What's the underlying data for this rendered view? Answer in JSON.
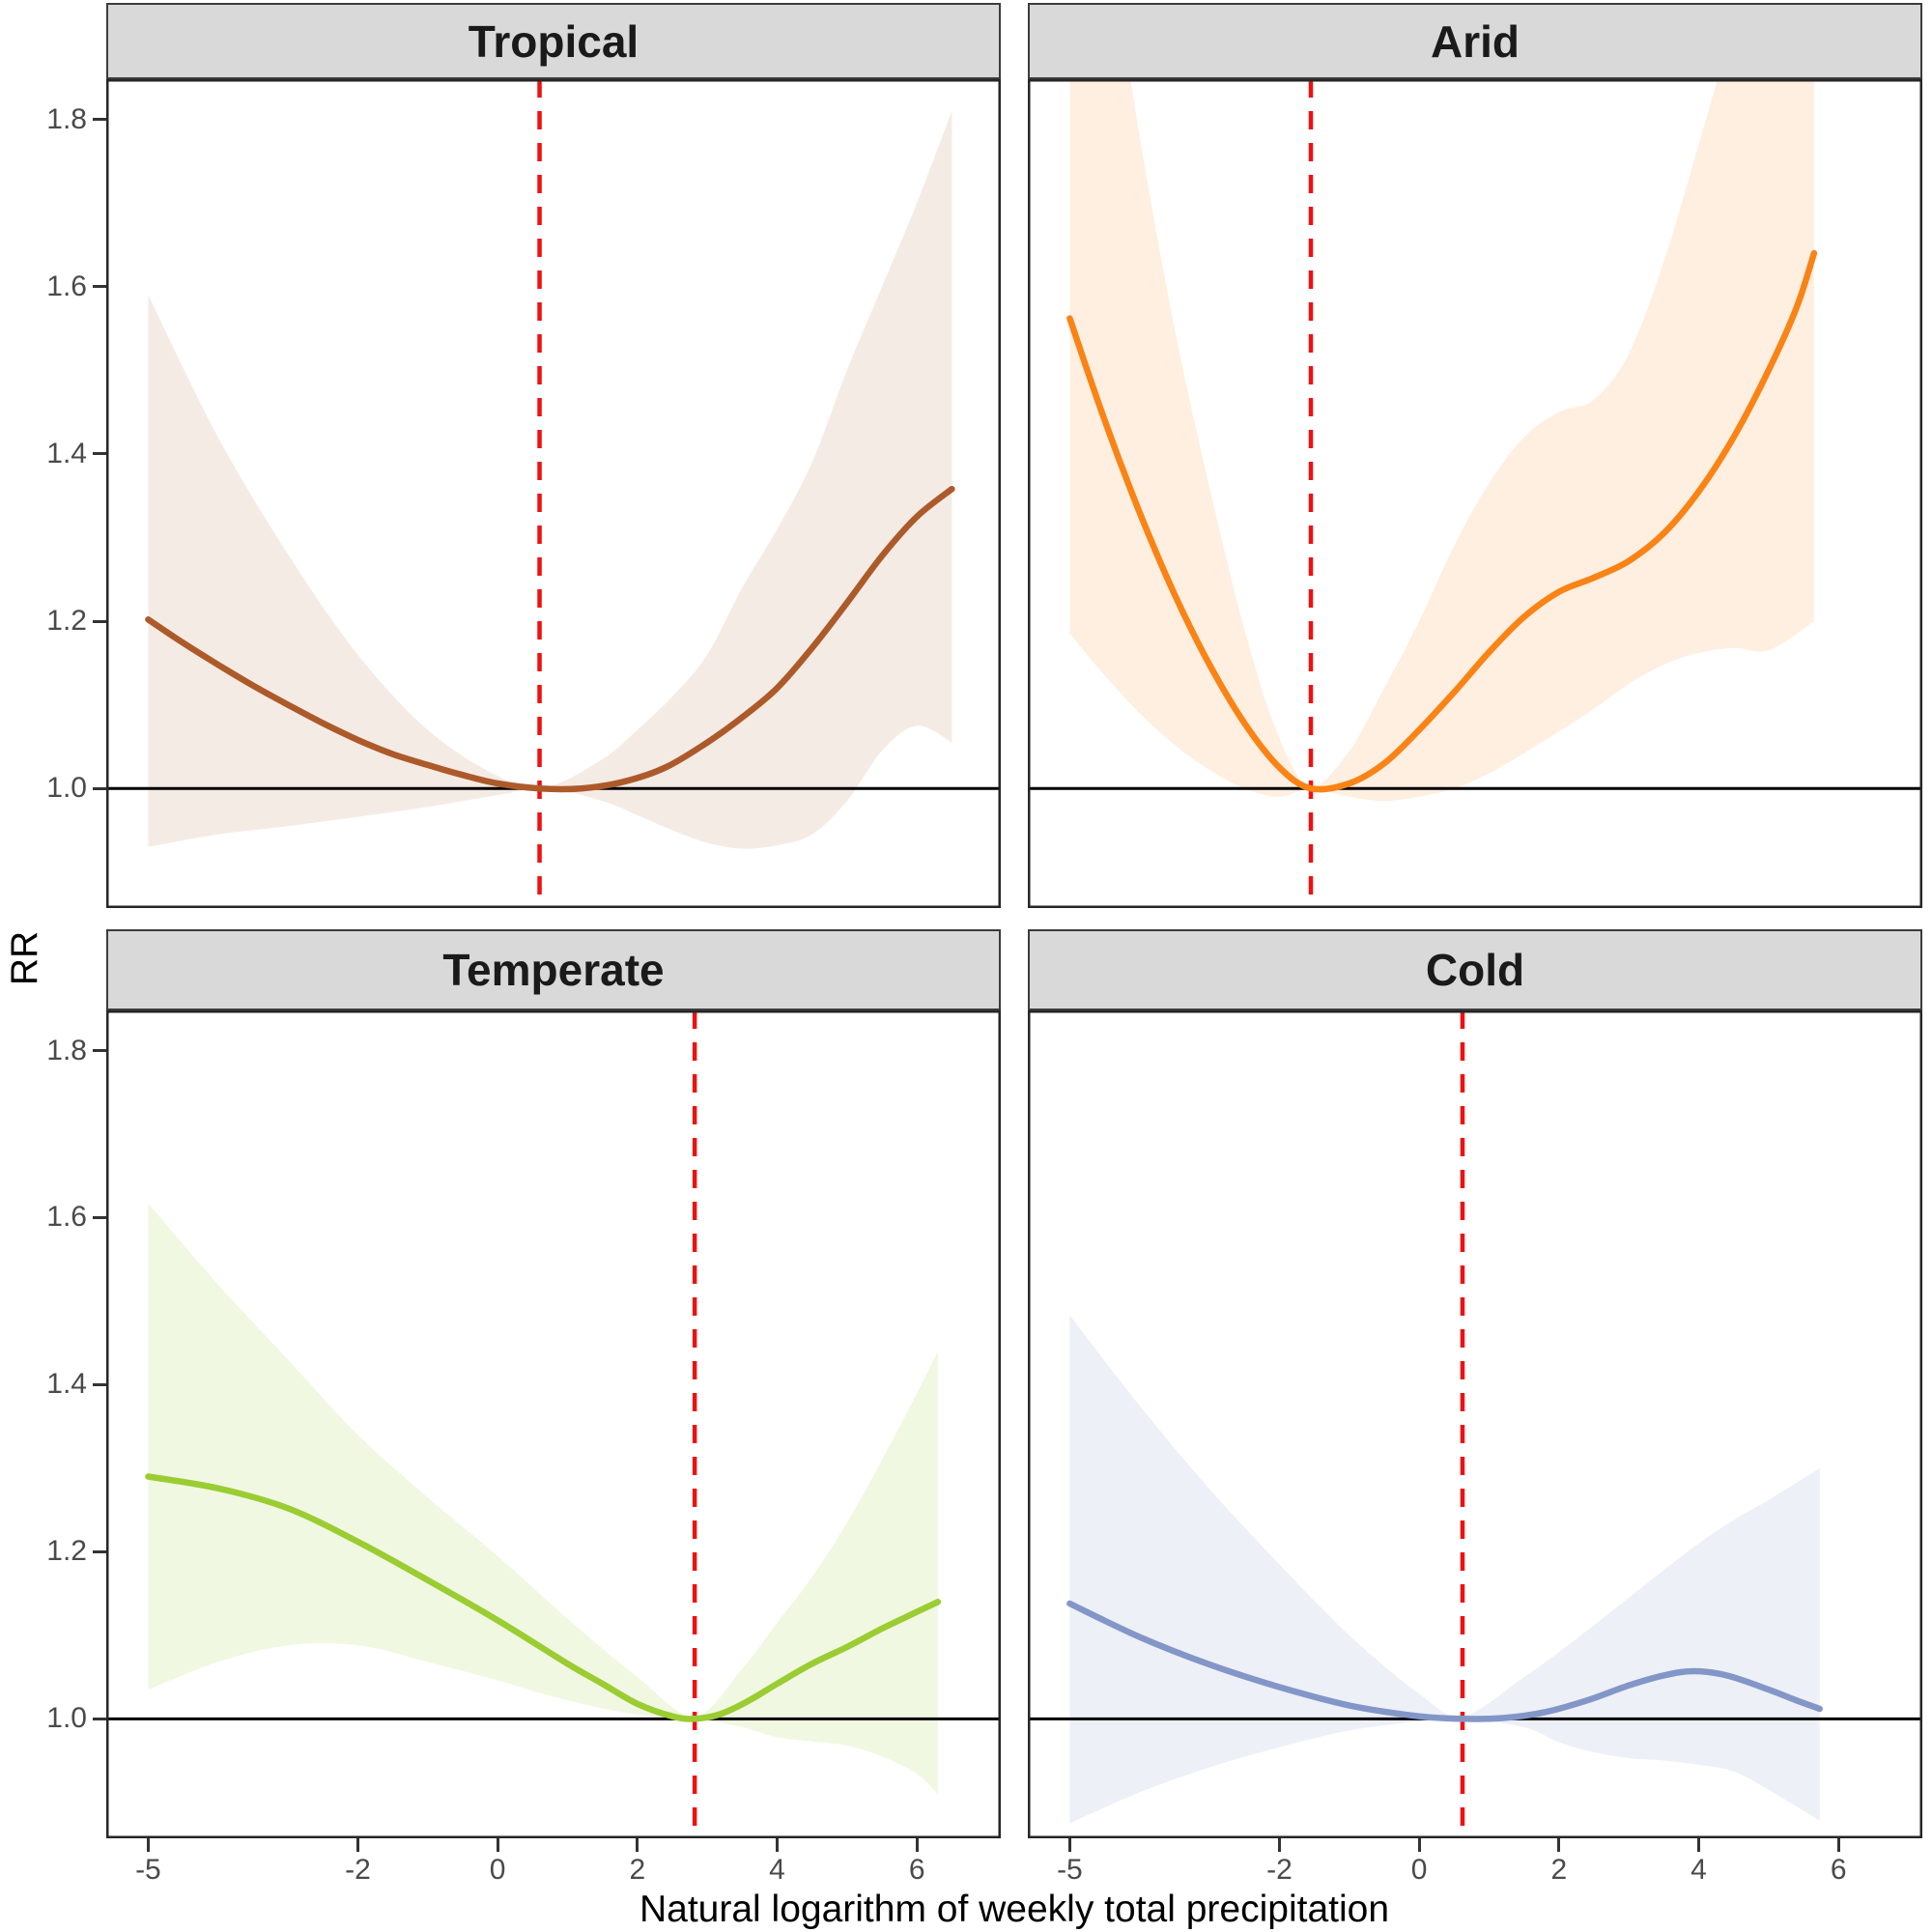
{
  "figure": {
    "background": "#FFFFFF"
  },
  "chart_data": {
    "type": "line",
    "title": "",
    "xlabel": "Natural logarithm of weekly total precipitation",
    "ylabel": "RR",
    "x_domain": [
      -5.6,
      7.2
    ],
    "y_domain": [
      0.857,
      1.848
    ],
    "x_ticks": [
      "-5",
      "-2",
      "0",
      "2",
      "4",
      "6"
    ],
    "y_ticks": [
      "1.0",
      "1.2",
      "1.4",
      "1.6",
      "1.8"
    ],
    "grid": false,
    "legend": false,
    "baseline": 1.0,
    "styles": {
      "strip_bg": "#D9D9D9",
      "strip_text": "#1A1A1A",
      "panel_border": "#262626",
      "baseline_color": "#000000",
      "ref_line_color": "#EE1111",
      "tick_label_color": "#4A4A4A",
      "tick_mark_color": "#333333",
      "axis_title_color": "#000000"
    },
    "facets": [
      {
        "title": "Tropical",
        "color": "#AD5A2A",
        "ribbon_color": "rgba(173,90,42,0.12)",
        "ref_x": 0.6,
        "curve": {
          "x": [
            -5,
            -4.5,
            -4,
            -3.5,
            -3,
            -2.5,
            -2,
            -1.5,
            -1,
            -0.5,
            0,
            0.6,
            1.2,
            1.8,
            2.4,
            3,
            3.5,
            4,
            4.5,
            5,
            5.5,
            6,
            6.5
          ],
          "y": [
            1.202,
            1.174,
            1.148,
            1.123,
            1.1,
            1.078,
            1.058,
            1.041,
            1.028,
            1.016,
            1.006,
            1.0,
            1.0,
            1.008,
            1.025,
            1.055,
            1.085,
            1.12,
            1.168,
            1.222,
            1.278,
            1.325,
            1.358
          ]
        },
        "ribbon": {
          "x": [
            -5,
            -4,
            -3,
            -2,
            -1,
            0,
            0.7,
            1.5,
            2,
            2.5,
            3,
            3.5,
            4,
            4.5,
            5,
            5.5,
            6,
            6.5
          ],
          "hi": [
            1.59,
            1.42,
            1.28,
            1.16,
            1.07,
            1.015,
            1.002,
            1.035,
            1.07,
            1.11,
            1.16,
            1.24,
            1.31,
            1.39,
            1.5,
            1.6,
            1.7,
            1.81
          ],
          "lo": [
            0.93,
            0.945,
            0.955,
            0.966,
            0.978,
            0.992,
            1.0,
            0.985,
            0.968,
            0.95,
            0.935,
            0.928,
            0.932,
            0.945,
            0.985,
            1.045,
            1.075,
            1.055
          ]
        }
      },
      {
        "title": "Arid",
        "color": "#F98315",
        "ribbon_color": "rgba(249,131,21,0.13)",
        "ref_x": -1.55,
        "curve": {
          "x": [
            -5,
            -4.5,
            -4,
            -3.5,
            -3,
            -2.5,
            -2,
            -1.55,
            -1,
            -0.5,
            0,
            0.5,
            1,
            1.5,
            2,
            2.5,
            3,
            3.5,
            4,
            4.5,
            5,
            5.4,
            5.65
          ],
          "y": [
            1.562,
            1.44,
            1.33,
            1.232,
            1.148,
            1.078,
            1.025,
            1.0,
            1.006,
            1.03,
            1.07,
            1.115,
            1.163,
            1.205,
            1.235,
            1.252,
            1.272,
            1.305,
            1.355,
            1.42,
            1.5,
            1.575,
            1.64
          ]
        },
        "ribbon": {
          "x": [
            -5,
            -4.5,
            -4,
            -3.5,
            -3,
            -2.5,
            -2,
            -1.55,
            -1,
            -0.5,
            0,
            0.5,
            1,
            1.5,
            2,
            2.5,
            3,
            3.5,
            4,
            4.5,
            5,
            5.65
          ],
          "hi": [
            2.3,
            2.05,
            1.78,
            1.55,
            1.36,
            1.19,
            1.06,
            1.003,
            1.045,
            1.12,
            1.2,
            1.29,
            1.365,
            1.42,
            1.45,
            1.465,
            1.52,
            1.63,
            1.77,
            1.92,
            2.1,
            2.4
          ],
          "lo": [
            1.185,
            1.135,
            1.09,
            1.052,
            1.022,
            1.0,
            0.99,
            1.0,
            0.99,
            0.985,
            0.99,
            1.0,
            1.018,
            1.042,
            1.068,
            1.095,
            1.125,
            1.148,
            1.162,
            1.168,
            1.165,
            1.2
          ]
        }
      },
      {
        "title": "Temperate",
        "color": "#9ACD32",
        "ribbon_color": "rgba(154,205,50,0.14)",
        "ref_x": 2.82,
        "curve": {
          "x": [
            -5,
            -4,
            -3,
            -2,
            -1,
            0,
            1,
            1.5,
            2,
            2.5,
            2.82,
            3.2,
            3.6,
            4,
            4.5,
            5,
            5.5,
            6,
            6.3
          ],
          "y": [
            1.29,
            1.276,
            1.252,
            1.212,
            1.166,
            1.118,
            1.066,
            1.042,
            1.018,
            1.003,
            1.0,
            1.006,
            1.022,
            1.042,
            1.066,
            1.086,
            1.108,
            1.128,
            1.14
          ]
        },
        "ribbon": {
          "x": [
            -5,
            -4,
            -3,
            -2,
            -1,
            0,
            1,
            2,
            2.82,
            3.5,
            4,
            4.5,
            5,
            5.5,
            6,
            6.3
          ],
          "hi": [
            1.617,
            1.52,
            1.43,
            1.34,
            1.265,
            1.195,
            1.12,
            1.05,
            1.003,
            1.06,
            1.115,
            1.17,
            1.235,
            1.31,
            1.39,
            1.44
          ],
          "lo": [
            1.035,
            1.068,
            1.088,
            1.088,
            1.068,
            1.046,
            1.022,
            1.005,
            1.0,
            0.99,
            0.978,
            0.973,
            0.968,
            0.955,
            0.934,
            0.91
          ]
        }
      },
      {
        "title": "Cold",
        "color": "#8396C8",
        "ribbon_color": "rgba(131,150,200,0.14)",
        "ref_x": 0.62,
        "curve": {
          "x": [
            -5,
            -4,
            -3,
            -2,
            -1,
            0,
            0.62,
            1.2,
            1.8,
            2.4,
            3,
            3.5,
            3.93,
            4.4,
            5,
            5.4,
            5.73
          ],
          "y": [
            1.138,
            1.098,
            1.065,
            1.038,
            1.016,
            1.003,
            1.0,
            1.001,
            1.008,
            1.022,
            1.04,
            1.052,
            1.057,
            1.052,
            1.035,
            1.022,
            1.012
          ]
        },
        "ribbon": {
          "x": [
            -5,
            -4,
            -3,
            -2,
            -1,
            0,
            0.62,
            1.5,
            2,
            2.5,
            3,
            3.5,
            4,
            4.5,
            5,
            5.73
          ],
          "hi": [
            1.483,
            1.375,
            1.275,
            1.185,
            1.1,
            1.03,
            1.003,
            1.05,
            1.08,
            1.112,
            1.145,
            1.178,
            1.21,
            1.238,
            1.262,
            1.3
          ],
          "lo": [
            0.875,
            0.912,
            0.942,
            0.966,
            0.986,
            0.997,
            1.0,
            0.99,
            0.972,
            0.96,
            0.953,
            0.95,
            0.945,
            0.937,
            0.915,
            0.878
          ]
        }
      }
    ]
  }
}
